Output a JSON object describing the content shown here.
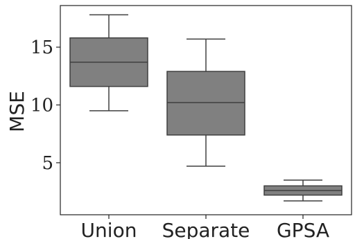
{
  "chart_data": {
    "type": "box",
    "title": "",
    "xlabel": "",
    "ylabel": "MSE",
    "ylim": [
      0.5,
      18.6
    ],
    "yticks": [
      5,
      10,
      15
    ],
    "ytick_labels": [
      "5",
      "10",
      "15"
    ],
    "grid": false,
    "categories": [
      "Union",
      "Separate",
      "GPSA"
    ],
    "boxes": [
      {
        "category": "Union",
        "whisker_low": 9.5,
        "q1": 11.6,
        "median": 13.7,
        "q3": 15.8,
        "whisker_high": 17.8
      },
      {
        "category": "Separate",
        "whisker_low": 4.7,
        "q1": 7.4,
        "median": 10.2,
        "q3": 12.9,
        "whisker_high": 15.7
      },
      {
        "category": "GPSA",
        "whisker_low": 1.7,
        "q1": 2.2,
        "median": 2.6,
        "q3": 3.0,
        "whisker_high": 3.5
      }
    ],
    "colors": {
      "box_fill": "#808080",
      "line": "#3f3f3f",
      "frame": "#222222"
    }
  }
}
